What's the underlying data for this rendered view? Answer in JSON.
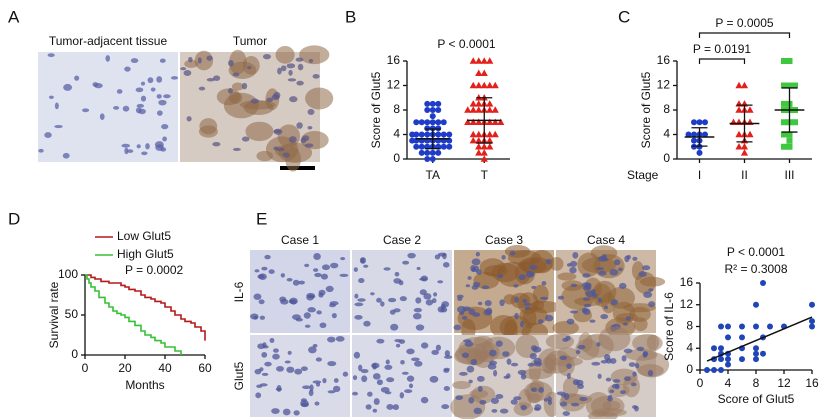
{
  "panel_labels": [
    "A",
    "B",
    "C",
    "D",
    "E"
  ],
  "panel_a": {
    "labels": [
      "Tumor-adjacent tissue",
      "Tumor"
    ]
  },
  "panel_e": {
    "cases": [
      "Case 1",
      "Case 2",
      "Case 3",
      "Case 4"
    ],
    "rows": [
      "IL-6",
      "Glut5"
    ]
  },
  "chart_data": [
    {
      "type": "dot",
      "ylabel": "Score of Glut5",
      "annotation": "P < 0.0001",
      "categories": [
        "TA",
        "T"
      ],
      "values": [
        [
          0,
          0,
          1,
          1,
          1,
          1,
          2,
          2,
          2,
          2,
          2,
          2,
          2,
          3,
          3,
          3,
          3,
          3,
          3,
          3,
          3,
          4,
          4,
          4,
          4,
          4,
          4,
          4,
          4,
          5,
          5,
          5,
          6,
          6,
          6,
          6,
          6,
          6,
          7,
          8,
          8,
          8,
          9,
          9,
          9
        ],
        [
          0,
          1,
          1,
          2,
          2,
          2,
          3,
          3,
          3,
          3,
          4,
          4,
          4,
          4,
          4,
          6,
          6,
          6,
          6,
          6,
          6,
          6,
          8,
          8,
          8,
          8,
          8,
          8,
          9,
          9,
          9,
          9,
          10,
          10,
          12,
          12,
          12,
          12,
          12,
          14,
          14,
          16,
          16,
          16,
          16
        ]
      ],
      "means": [
        3.3,
        6.3
      ],
      "sds": [
        1.6,
        3.7
      ],
      "colors": [
        "#1e3cc8",
        "#e3211c"
      ],
      "markers": [
        "circle",
        "triangle"
      ],
      "ylim": [
        0,
        16
      ],
      "yticks": [
        0,
        4,
        8,
        12,
        16
      ]
    },
    {
      "type": "dot",
      "ylabel": "Score of Glut5",
      "xlabel": "Stage",
      "categories": [
        "I",
        "II",
        "III"
      ],
      "values": [
        [
          1,
          2,
          2,
          3,
          3,
          4,
          4,
          4,
          4,
          6,
          6,
          6
        ],
        [
          1,
          2,
          2,
          3,
          4,
          4,
          4,
          6,
          6,
          6,
          6,
          8,
          8,
          8,
          9,
          9,
          12,
          12
        ],
        [
          2,
          2,
          3,
          4,
          4,
          6,
          6,
          6,
          8,
          8,
          8,
          9,
          9,
          12,
          12,
          12,
          16,
          16
        ]
      ],
      "means": [
        3.6,
        5.8,
        8.0
      ],
      "sds": [
        1.5,
        3.0,
        3.6
      ],
      "colors": [
        "#1e3cc8",
        "#e3211c",
        "#3fc83f"
      ],
      "markers": [
        "circle",
        "triangle",
        "square"
      ],
      "comparisons": [
        {
          "groups": [
            0,
            1
          ],
          "label": "P = 0.0191"
        },
        {
          "groups": [
            0,
            2
          ],
          "label": "P = 0.0005"
        }
      ],
      "ylim": [
        0,
        16
      ],
      "yticks": [
        0,
        4,
        8,
        12,
        16
      ]
    },
    {
      "type": "line",
      "ylabel": "Survival rate",
      "xlabel": "Months",
      "annotation": "P = 0.0002",
      "series": [
        {
          "name": "Low Glut5",
          "color": "#b5191a",
          "x": [
            0,
            3,
            5,
            8,
            10,
            12,
            15,
            18,
            20,
            22,
            25,
            28,
            30,
            33,
            35,
            38,
            40,
            43,
            45,
            48,
            50,
            53,
            55,
            58,
            60
          ],
          "values": [
            100,
            97,
            95,
            92,
            92,
            90,
            90,
            87,
            85,
            82,
            80,
            75,
            72,
            70,
            67,
            65,
            60,
            55,
            50,
            45,
            42,
            40,
            35,
            30,
            18
          ]
        },
        {
          "name": "High Glut5",
          "color": "#35c035",
          "x": [
            0,
            1,
            2,
            3,
            5,
            7,
            10,
            12,
            14,
            16,
            18,
            20,
            22,
            25,
            28,
            30,
            33,
            35,
            38,
            40,
            43,
            45,
            48
          ],
          "values": [
            100,
            95,
            90,
            85,
            80,
            72,
            65,
            60,
            55,
            52,
            50,
            47,
            42,
            37,
            30,
            25,
            22,
            18,
            15,
            10,
            10,
            5,
            0
          ]
        }
      ],
      "xlim": [
        0,
        60
      ],
      "xticks": [
        0,
        20,
        40,
        60
      ],
      "ylim": [
        0,
        100
      ],
      "yticks": [
        0,
        50,
        100
      ]
    },
    {
      "type": "scatter",
      "xlabel": "Score of Glut5",
      "ylabel": "Score of IL-6",
      "annotations": [
        "P < 0.0001",
        "R² = 0.3008"
      ],
      "color": "#1f45b8",
      "x": [
        1,
        2,
        2,
        2,
        3,
        3,
        3,
        3,
        3,
        4,
        4,
        4,
        4,
        4,
        6,
        6,
        6,
        6,
        8,
        8,
        8,
        8,
        8,
        9,
        9,
        9,
        10,
        12,
        16,
        16,
        16
      ],
      "values": [
        0,
        0,
        2,
        4,
        0,
        2,
        3,
        4,
        8,
        1,
        2,
        3,
        6,
        8,
        2,
        4,
        6,
        8,
        2,
        3,
        4,
        8,
        12,
        3,
        6,
        16,
        8,
        8,
        8,
        9,
        12
      ],
      "fit": {
        "slope": 0.54,
        "intercept": 1.1
      },
      "xlim": [
        0,
        16
      ],
      "xticks": [
        0,
        4,
        8,
        12,
        16
      ],
      "ylim": [
        0,
        16
      ],
      "yticks": [
        0,
        4,
        8,
        12,
        16
      ]
    }
  ]
}
